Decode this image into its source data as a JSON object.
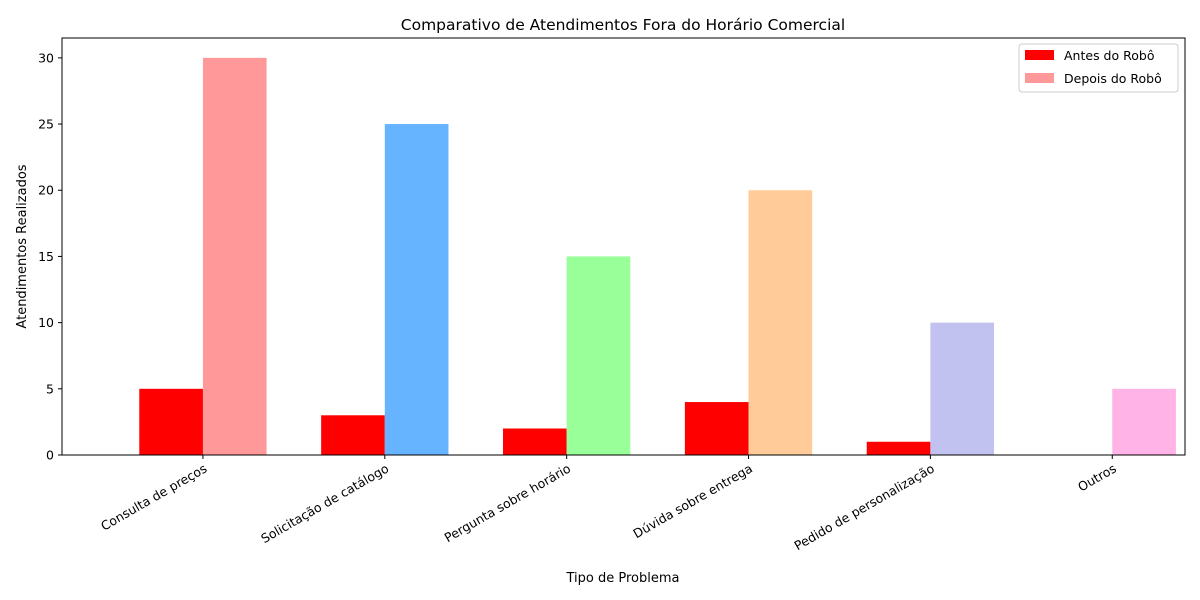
{
  "chart_data": {
    "type": "bar",
    "title": "Comparativo de Atendimentos Fora do Horário Comercial",
    "xlabel": "Tipo de Problema",
    "ylabel": "Atendimentos Realizados",
    "categories": [
      "Consulta de preços",
      "Solicitação de catálogo",
      "Pergunta sobre horário",
      "Dúvida sobre entrega",
      "Pedido de personalização",
      "Outros"
    ],
    "series": [
      {
        "name": "Antes do Robô",
        "values": [
          5,
          3,
          2,
          4,
          1,
          0
        ],
        "colors": [
          "#ff0000",
          "#ff0000",
          "#ff0000",
          "#ff0000",
          "#ff0000",
          "#ff0000"
        ]
      },
      {
        "name": "Depois do Robô",
        "values": [
          30,
          25,
          15,
          20,
          10,
          5
        ],
        "colors": [
          "#ff9999",
          "#66b3ff",
          "#99ff99",
          "#ffcc99",
          "#c2c2f0",
          "#ffb3e6"
        ]
      }
    ],
    "ylim": [
      0,
      31.5
    ],
    "yticks": [
      0,
      5,
      10,
      15,
      20,
      25,
      30
    ],
    "grid": false,
    "legend_position": "top-right",
    "xtick_rotation": 30
  }
}
